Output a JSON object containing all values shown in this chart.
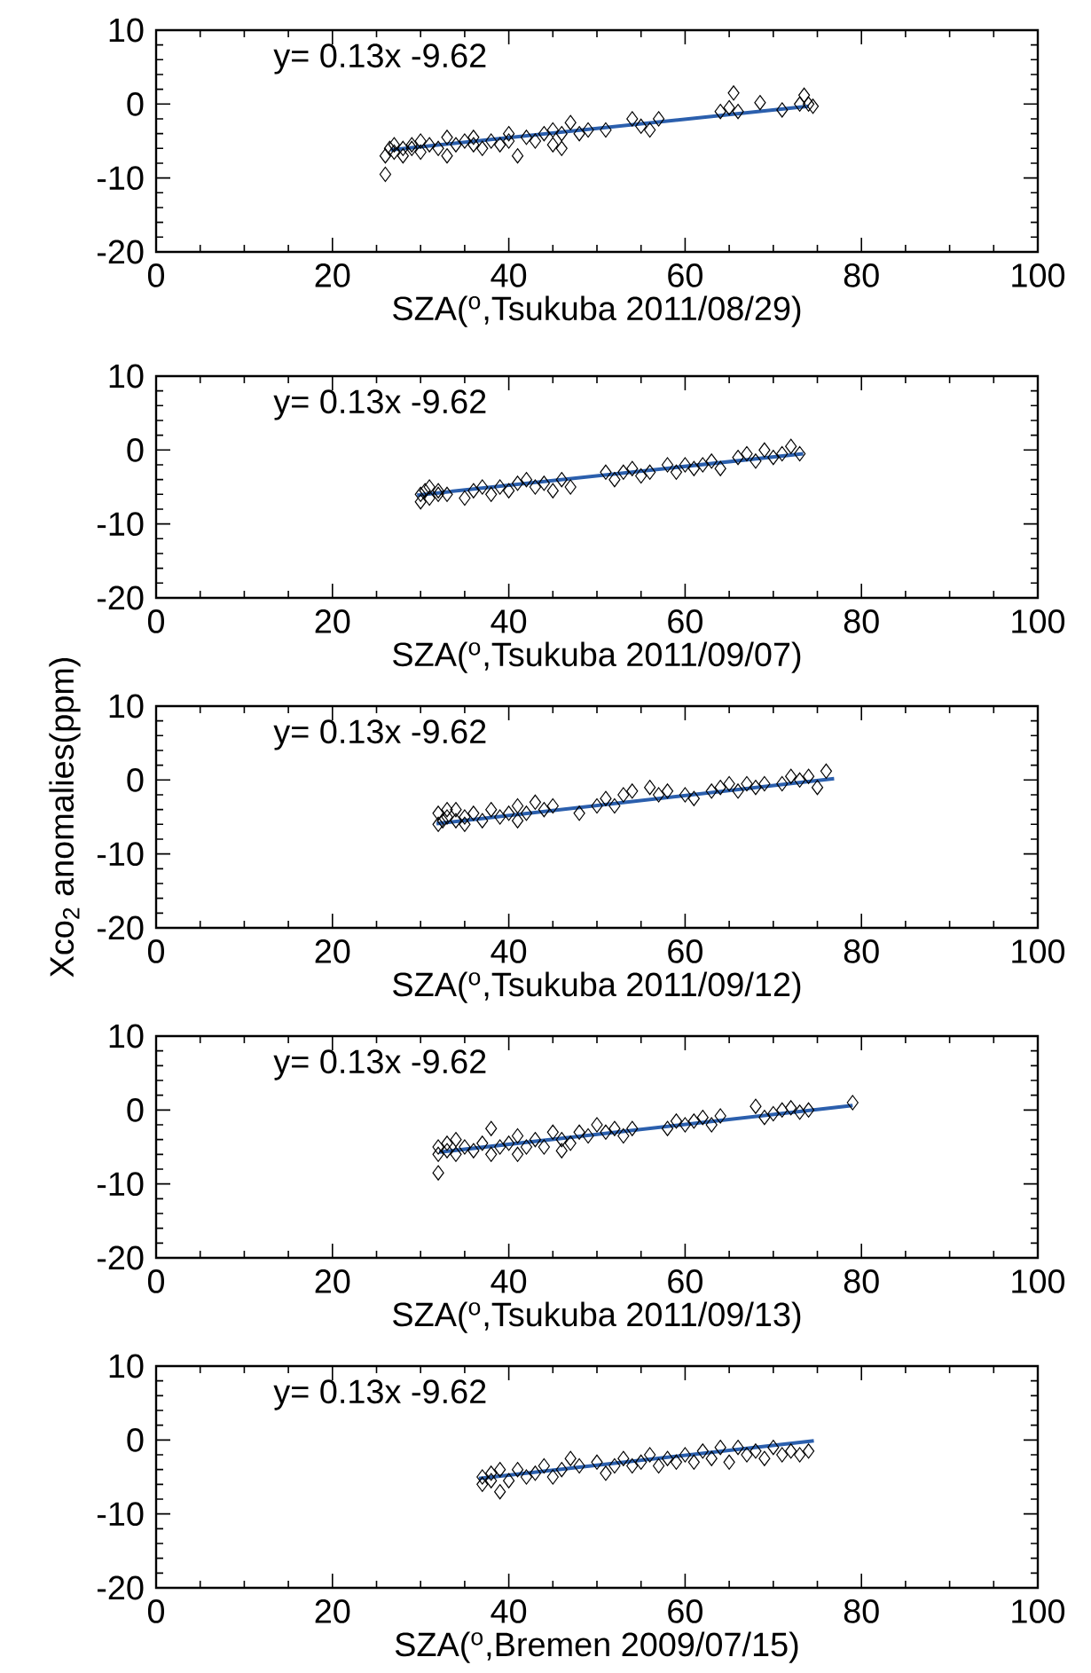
{
  "chart_data": [
    {
      "type": "scatter",
      "xlabel": "SZA($^{o}$,Tsukuba 2011/08/29)",
      "annotations": [
        "y= 0.13x -9.62"
      ],
      "xlim": [
        0,
        100
      ],
      "xticks": [
        0,
        20,
        40,
        60,
        80,
        100
      ],
      "ylim": [
        -20,
        10
      ],
      "yticks": [
        -20,
        -10,
        0,
        10
      ],
      "series": [
        {
          "marker": "diamond",
          "color": "#000000",
          "x": [
            26,
            26,
            26.5,
            27,
            27,
            28,
            28,
            29,
            29,
            30,
            30,
            31,
            32,
            33,
            33,
            34,
            35,
            36,
            36,
            37,
            38,
            39,
            40,
            40,
            41,
            42,
            43,
            44,
            45,
            45,
            46,
            46,
            47,
            48,
            49,
            51,
            54,
            55,
            56,
            57,
            64,
            65,
            65.5,
            66,
            68.5,
            71,
            73,
            73.5,
            74,
            74.5
          ],
          "values": [
            -9.5,
            -7,
            -6,
            -6.5,
            -5.5,
            -6,
            -7,
            -6,
            -5.5,
            -5,
            -6.5,
            -5.5,
            -6,
            -4.5,
            -7,
            -5.5,
            -5,
            -5.5,
            -4.5,
            -6,
            -5,
            -5.5,
            -4,
            -5,
            -7,
            -4.5,
            -5,
            -4,
            -5.5,
            -3.5,
            -4,
            -6,
            -2.5,
            -4,
            -3.5,
            -3.5,
            -2,
            -3,
            -3.5,
            -2,
            -1,
            -0.5,
            1.5,
            -1,
            0.2,
            -0.8,
            0,
            1.2,
            0,
            -0.3
          ]
        },
        {
          "type": "line",
          "color": "#2b5fad",
          "x": [
            26.6,
            74
          ],
          "values": [
            -6.2,
            -0.3
          ]
        }
      ]
    },
    {
      "type": "scatter",
      "xlabel": "SZA($^{o}$,Tsukuba 2011/09/07)",
      "annotations": [
        "y= 0.13x -9.62"
      ],
      "xlim": [
        0,
        100
      ],
      "xticks": [
        0,
        20,
        40,
        60,
        80,
        100
      ],
      "ylim": [
        -20,
        10
      ],
      "yticks": [
        -20,
        -10,
        0,
        10
      ],
      "series": [
        {
          "marker": "diamond",
          "color": "#000000",
          "x": [
            30,
            30,
            30.5,
            31,
            31,
            32,
            32,
            33,
            35,
            36,
            37,
            38,
            39,
            40,
            41,
            42,
            43,
            44,
            45,
            46,
            47,
            51,
            52,
            53,
            54,
            55,
            56,
            58,
            59,
            60,
            61,
            62,
            63,
            64,
            66,
            67,
            68,
            69,
            70,
            71,
            72,
            73
          ],
          "values": [
            -7,
            -6,
            -5.5,
            -6.5,
            -5,
            -6,
            -5.5,
            -6,
            -6.5,
            -5.5,
            -5,
            -6,
            -5,
            -5.5,
            -4.5,
            -4,
            -5,
            -4.5,
            -5.5,
            -4,
            -5,
            -3,
            -4,
            -3,
            -2.5,
            -3.5,
            -3,
            -2,
            -3,
            -2,
            -2.5,
            -2,
            -1.5,
            -2.5,
            -1,
            -0.5,
            -1.5,
            0,
            -1,
            -0.5,
            0.5,
            -0.5
          ]
        },
        {
          "type": "line",
          "color": "#2b5fad",
          "x": [
            29.6,
            73.4
          ],
          "values": [
            -6.1,
            -0.5
          ]
        }
      ]
    },
    {
      "type": "scatter",
      "xlabel": "SZA($^{o}$,Tsukuba 2011/09/12)",
      "ylabel": "Xco$_{2}$ anomalies(ppm)",
      "annotations": [
        "y= 0.13x -9.62"
      ],
      "xlim": [
        0,
        100
      ],
      "xticks": [
        0,
        20,
        40,
        60,
        80,
        100
      ],
      "ylim": [
        -20,
        10
      ],
      "yticks": [
        -20,
        -10,
        0,
        10
      ],
      "series": [
        {
          "marker": "diamond",
          "color": "#000000",
          "x": [
            32,
            32,
            32.5,
            33,
            33,
            34,
            34,
            35,
            35,
            36,
            37,
            38,
            39,
            40,
            41,
            41,
            42,
            43,
            44,
            45,
            48,
            50,
            51,
            52,
            53,
            54,
            56,
            57,
            58,
            60,
            61,
            63,
            64,
            65,
            66,
            67,
            68,
            69,
            71,
            72,
            73,
            74,
            75,
            76
          ],
          "values": [
            -6,
            -4.5,
            -5.5,
            -5,
            -4,
            -5.5,
            -4,
            -6,
            -5,
            -4.5,
            -5.5,
            -4,
            -5,
            -4.5,
            -5.5,
            -3.5,
            -4.5,
            -3,
            -4,
            -3.5,
            -4.5,
            -3.5,
            -2.5,
            -3.5,
            -2,
            -1.5,
            -1,
            -2,
            -1.5,
            -2,
            -2.5,
            -1.5,
            -1,
            -0.5,
            -1.5,
            -0.5,
            -1,
            -0.5,
            -0.5,
            0.5,
            0,
            0.5,
            -1,
            1.2
          ]
        },
        {
          "type": "line",
          "color": "#2b5fad",
          "x": [
            31.8,
            76.9
          ],
          "values": [
            -5.9,
            0.2
          ]
        }
      ]
    },
    {
      "type": "scatter",
      "xlabel": "SZA($^{o}$,Tsukuba 2011/09/13)",
      "annotations": [
        "y= 0.13x -9.62"
      ],
      "xlim": [
        0,
        100
      ],
      "xticks": [
        0,
        20,
        40,
        60,
        80,
        100
      ],
      "ylim": [
        -20,
        10
      ],
      "yticks": [
        -20,
        -10,
        0,
        10
      ],
      "series": [
        {
          "marker": "diamond",
          "color": "#000000",
          "x": [
            32,
            32,
            32,
            33,
            33,
            34,
            34,
            35,
            36,
            37,
            38,
            38,
            39,
            40,
            41,
            41,
            42,
            43,
            44,
            45,
            46,
            46,
            47,
            48,
            49,
            50,
            51,
            52,
            53,
            54,
            58,
            59,
            60,
            61,
            62,
            63,
            64,
            68,
            69,
            70,
            71,
            72,
            73,
            74,
            79
          ],
          "values": [
            -8.5,
            -6,
            -5,
            -5.5,
            -4.5,
            -6,
            -4,
            -5,
            -5.5,
            -4.5,
            -2.5,
            -6,
            -5,
            -4.5,
            -6,
            -3.5,
            -5,
            -4,
            -5,
            -3,
            -5.5,
            -4,
            -4.5,
            -3,
            -3.5,
            -2,
            -3,
            -2.5,
            -3.5,
            -2.5,
            -2.5,
            -1.5,
            -2,
            -1.5,
            -1,
            -2,
            -0.8,
            0.5,
            -1,
            -0.5,
            0,
            0.3,
            -0.3,
            0,
            1
          ]
        },
        {
          "type": "line",
          "color": "#2b5fad",
          "x": [
            32.1,
            79
          ],
          "values": [
            -5.7,
            0.6
          ]
        }
      ]
    },
    {
      "type": "scatter",
      "xlabel": "SZA($^{o}$,Bremen 2009/07/15)",
      "annotations": [
        "y= 0.13x -9.62"
      ],
      "xlim": [
        0,
        100
      ],
      "xticks": [
        0,
        20,
        40,
        60,
        80,
        100
      ],
      "ylim": [
        -20,
        10
      ],
      "yticks": [
        -20,
        -10,
        0,
        10
      ],
      "series": [
        {
          "marker": "diamond",
          "color": "#000000",
          "x": [
            37,
            37,
            38,
            38,
            39,
            39,
            40,
            41,
            42,
            43,
            44,
            45,
            46,
            47,
            48,
            50,
            51,
            52,
            53,
            54,
            55,
            56,
            57,
            58,
            59,
            60,
            61,
            62,
            63,
            64,
            65,
            66,
            67,
            68,
            69,
            70,
            71,
            72,
            73,
            74
          ],
          "values": [
            -6,
            -5,
            -5.5,
            -4.5,
            -7,
            -4,
            -5.5,
            -4,
            -5,
            -4.5,
            -3.5,
            -5,
            -4,
            -2.5,
            -3.5,
            -3,
            -4.5,
            -3.5,
            -2.5,
            -3.5,
            -3,
            -2,
            -3.5,
            -2.5,
            -3,
            -2,
            -3,
            -1.5,
            -2.5,
            -1,
            -3,
            -1,
            -2,
            -1.5,
            -2.5,
            -1,
            -2,
            -1.5,
            -2,
            -1.5
          ]
        },
        {
          "type": "line",
          "color": "#2b5fad",
          "x": [
            36.6,
            74.6
          ],
          "values": [
            -5.2,
            -0.1
          ]
        }
      ]
    }
  ]
}
